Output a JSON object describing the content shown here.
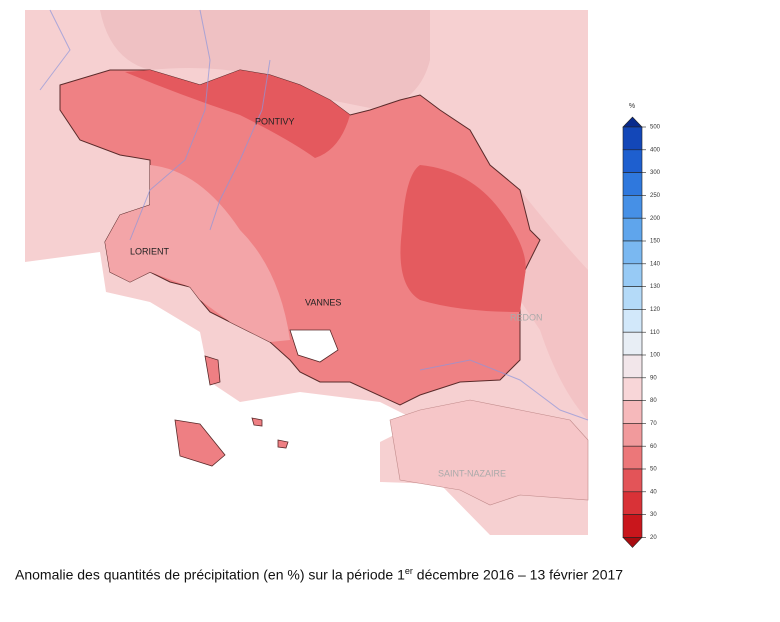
{
  "map": {
    "cities": [
      "PONTIVY",
      "LORIENT",
      "VANNES",
      "REDON",
      "SAINT-NAZAIRE"
    ],
    "legend": {
      "unit": "%",
      "ticks": [
        500,
        400,
        300,
        250,
        200,
        150,
        140,
        130,
        120,
        110,
        100,
        90,
        80,
        70,
        60,
        50,
        40,
        30,
        20
      ],
      "colors": [
        "#082a8c",
        "#1347b8",
        "#1e5fcf",
        "#2f78dd",
        "#4690e6",
        "#5fa5ec",
        "#7ab8f1",
        "#97caf5",
        "#b4daf8",
        "#d2e8fa",
        "#e8eef5",
        "#f2e6ea",
        "#f8d6d8",
        "#f6b9bb",
        "#f19a9c",
        "#ec7779",
        "#e35458",
        "#d93237",
        "#c9161c",
        "#a80c10"
      ]
    }
  },
  "caption": {
    "before": "Anomalie des quantités de précipitation (en %) sur la période 1",
    "superscript": "er",
    "after": " décembre 2016 – 13 février 2017"
  }
}
